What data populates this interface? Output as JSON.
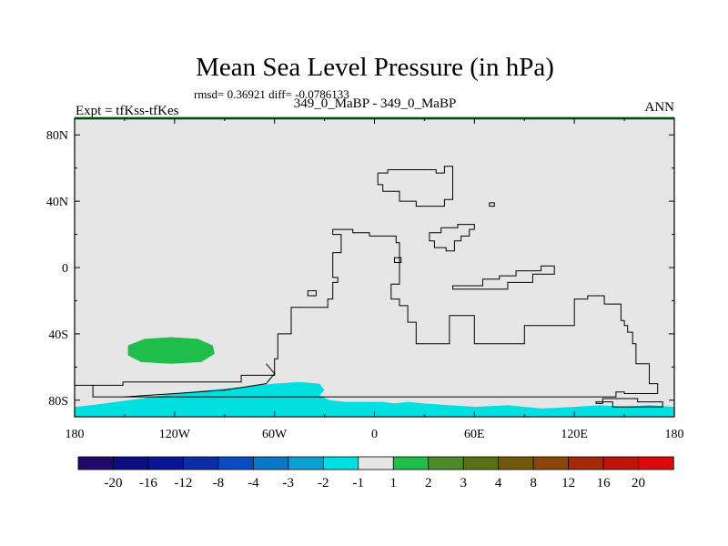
{
  "chart_data": {
    "type": "map",
    "title": "Mean Sea Level Pressure (in hPa)",
    "stats": "rmsd= 0.36921 diff= -0.0786133",
    "left_label": "Expt = tfKss-tfKes",
    "center_label": "349_0_MaBP - 349_0_MaBP",
    "right_label": "ANN",
    "x_ticks": [
      {
        "value": -180,
        "label": "180"
      },
      {
        "value": -120,
        "label": "120W"
      },
      {
        "value": -60,
        "label": "60W"
      },
      {
        "value": 0,
        "label": "0"
      },
      {
        "value": 60,
        "label": "60E"
      },
      {
        "value": 120,
        "label": "120E"
      },
      {
        "value": 180,
        "label": "180"
      }
    ],
    "y_ticks": [
      {
        "value": 80,
        "label": "80N"
      },
      {
        "value": 40,
        "label": "40N"
      },
      {
        "value": 0,
        "label": "0"
      },
      {
        "value": -40,
        "label": "40S"
      },
      {
        "value": -80,
        "label": "80S"
      }
    ],
    "xlim": [
      -180,
      180
    ],
    "ylim": [
      -90,
      90
    ],
    "colorbar": {
      "colors": [
        "#220a6b",
        "#0a0e80",
        "#0a1496",
        "#0a2ea8",
        "#0a4cc0",
        "#0a78c8",
        "#0aa2d4",
        "#00e0e0",
        "#e6e6e6",
        "#1fbe4a",
        "#4c8c28",
        "#5a7014",
        "#6e5a0a",
        "#8c460a",
        "#a42a0a",
        "#be140a",
        "#dc0a0a"
      ],
      "labels": [
        "-20",
        "-16",
        "-12",
        "-8",
        "-4",
        "-3",
        "-2",
        "-1",
        "1",
        "2",
        "3",
        "4",
        "8",
        "12",
        "16",
        "20"
      ]
    },
    "background_value_range": [
      -1,
      1
    ],
    "fields": [
      {
        "name": "southern-pacific-high-anomaly",
        "value_range": [
          1,
          2
        ],
        "polygon": [
          [
            -148,
            -47
          ],
          [
            -138,
            -43
          ],
          [
            -122,
            -42
          ],
          [
            -106,
            -43
          ],
          [
            -97,
            -47
          ],
          [
            -96,
            -52
          ],
          [
            -104,
            -57
          ],
          [
            -122,
            -58
          ],
          [
            -140,
            -57
          ],
          [
            -148,
            -53
          ]
        ]
      },
      {
        "name": "antarctic-low-anomaly",
        "value_range": [
          -2,
          -1
        ],
        "polygon": [
          [
            -180,
            -84
          ],
          [
            -170,
            -83
          ],
          [
            -155,
            -81
          ],
          [
            -140,
            -79
          ],
          [
            -120,
            -76
          ],
          [
            -100,
            -74
          ],
          [
            -80,
            -72
          ],
          [
            -60,
            -70
          ],
          [
            -45,
            -69
          ],
          [
            -33,
            -70
          ],
          [
            -30,
            -74
          ],
          [
            -33,
            -77
          ],
          [
            -27,
            -80
          ],
          [
            -18,
            -81
          ],
          [
            -5,
            -81
          ],
          [
            5,
            -81
          ],
          [
            12,
            -82
          ],
          [
            20,
            -81
          ],
          [
            30,
            -82
          ],
          [
            45,
            -83
          ],
          [
            60,
            -84
          ],
          [
            80,
            -83
          ],
          [
            100,
            -85
          ],
          [
            120,
            -84
          ],
          [
            135,
            -83
          ],
          [
            150,
            -84
          ],
          [
            165,
            -83
          ],
          [
            180,
            -84
          ],
          [
            180,
            -90
          ],
          [
            -180,
            -90
          ]
        ]
      }
    ],
    "coastlines": [
      {
        "name": "north-landmass",
        "points": [
          [
            2,
            57
          ],
          [
            2,
            50
          ],
          [
            5,
            50
          ],
          [
            5,
            46
          ],
          [
            15,
            46
          ],
          [
            15,
            40
          ],
          [
            25,
            40
          ],
          [
            25,
            37
          ],
          [
            42,
            37
          ],
          [
            42,
            41
          ],
          [
            47,
            41
          ],
          [
            47,
            61
          ],
          [
            42,
            61
          ],
          [
            42,
            57
          ],
          [
            37,
            57
          ],
          [
            37,
            59
          ],
          [
            8,
            59
          ],
          [
            8,
            57
          ]
        ]
      },
      {
        "name": "small-island-north",
        "points": [
          [
            69,
            39
          ],
          [
            72,
            39
          ],
          [
            72,
            37
          ],
          [
            69,
            37
          ]
        ]
      },
      {
        "name": "asian-island",
        "points": [
          [
            33,
            21
          ],
          [
            40,
            21
          ],
          [
            40,
            24
          ],
          [
            50,
            24
          ],
          [
            50,
            26
          ],
          [
            60,
            26
          ],
          [
            60,
            23
          ],
          [
            57,
            23
          ],
          [
            57,
            19
          ],
          [
            52,
            19
          ],
          [
            52,
            16
          ],
          [
            48,
            16
          ],
          [
            48,
            10
          ],
          [
            43,
            10
          ],
          [
            43,
            12
          ],
          [
            36,
            12
          ],
          [
            36,
            16
          ],
          [
            33,
            16
          ]
        ]
      },
      {
        "name": "long-continent",
        "points": [
          [
            -180,
            -71
          ],
          [
            -151,
            -71
          ],
          [
            -151,
            -69
          ],
          [
            -80,
            -69
          ],
          [
            -80,
            -65
          ],
          [
            -60,
            -65
          ],
          [
            -60,
            -55
          ],
          [
            -58,
            -55
          ],
          [
            -58,
            -40
          ],
          [
            -50,
            -40
          ],
          [
            -50,
            -24
          ],
          [
            -28,
            -24
          ],
          [
            -28,
            -19
          ],
          [
            -25,
            -19
          ],
          [
            -25,
            -9
          ],
          [
            -22,
            -9
          ],
          [
            -22,
            -6
          ],
          [
            -25,
            -6
          ],
          [
            -25,
            9
          ],
          [
            -20,
            9
          ],
          [
            -20,
            20
          ],
          [
            -25,
            20
          ],
          [
            -25,
            23
          ],
          [
            -13,
            23
          ],
          [
            -13,
            21
          ],
          [
            -3,
            21
          ],
          [
            -3,
            19
          ],
          [
            13,
            19
          ],
          [
            13,
            15
          ],
          [
            15,
            15
          ],
          [
            15,
            -10
          ],
          [
            10,
            -10
          ],
          [
            10,
            -19
          ],
          [
            15,
            -19
          ],
          [
            15,
            -23
          ],
          [
            20,
            -23
          ],
          [
            20,
            -33
          ],
          [
            25,
            -33
          ],
          [
            25,
            -46
          ],
          [
            45,
            -46
          ],
          [
            45,
            -29
          ],
          [
            60,
            -29
          ],
          [
            60,
            -46
          ],
          [
            90,
            -46
          ],
          [
            90,
            -35
          ],
          [
            120,
            -35
          ],
          [
            120,
            -19
          ],
          [
            128,
            -19
          ],
          [
            128,
            -17
          ],
          [
            138,
            -17
          ],
          [
            138,
            -22
          ],
          [
            148,
            -22
          ],
          [
            148,
            -32
          ],
          [
            150,
            -32
          ],
          [
            150,
            -35
          ],
          [
            152,
            -35
          ],
          [
            152,
            -39
          ],
          [
            155,
            -39
          ],
          [
            155,
            -46
          ],
          [
            157,
            -46
          ],
          [
            157,
            -58
          ],
          [
            165,
            -58
          ],
          [
            165,
            -70
          ],
          [
            170,
            -70
          ],
          [
            170,
            -76
          ],
          [
            150,
            -76
          ],
          [
            150,
            -75
          ],
          [
            145,
            -75
          ],
          [
            145,
            -78
          ],
          [
            -169,
            -78
          ],
          [
            -169,
            -71
          ]
        ]
      },
      {
        "name": "east-coast-to-edge",
        "points": [
          [
            -180,
            -81
          ],
          [
            -180,
            -78
          ]
        ]
      },
      {
        "name": "inner-ridge",
        "points": [
          [
            -150,
            -78
          ],
          [
            -120,
            -76
          ],
          [
            -90,
            -74
          ],
          [
            -65,
            -70
          ],
          [
            -60,
            -64
          ],
          [
            -65,
            -58
          ]
        ]
      },
      {
        "name": "small-island-west",
        "points": [
          [
            -40,
            -17
          ],
          [
            -35,
            -17
          ],
          [
            -35,
            -14
          ],
          [
            -40,
            -14
          ]
        ]
      },
      {
        "name": "small-island-central",
        "points": [
          [
            12,
            6
          ],
          [
            16,
            6
          ],
          [
            16,
            3
          ],
          [
            12,
            3
          ]
        ]
      },
      {
        "name": "east-strip",
        "points": [
          [
            47,
            -13
          ],
          [
            80,
            -13
          ],
          [
            80,
            -9
          ],
          [
            95,
            -9
          ],
          [
            95,
            -4
          ],
          [
            108,
            -4
          ],
          [
            108,
            1
          ],
          [
            100,
            1
          ],
          [
            100,
            -2
          ],
          [
            85,
            -2
          ],
          [
            85,
            -5
          ],
          [
            75,
            -5
          ],
          [
            75,
            -7
          ],
          [
            65,
            -7
          ],
          [
            65,
            -11
          ],
          [
            47,
            -11
          ]
        ]
      },
      {
        "name": "antarctic-island",
        "points": [
          [
            133,
            -82
          ],
          [
            137,
            -82
          ],
          [
            137,
            -79
          ],
          [
            158,
            -79
          ],
          [
            158,
            -81
          ],
          [
            173,
            -81
          ],
          [
            173,
            -84
          ],
          [
            143,
            -84
          ],
          [
            143,
            -81
          ],
          [
            133,
            -81
          ]
        ]
      }
    ]
  }
}
